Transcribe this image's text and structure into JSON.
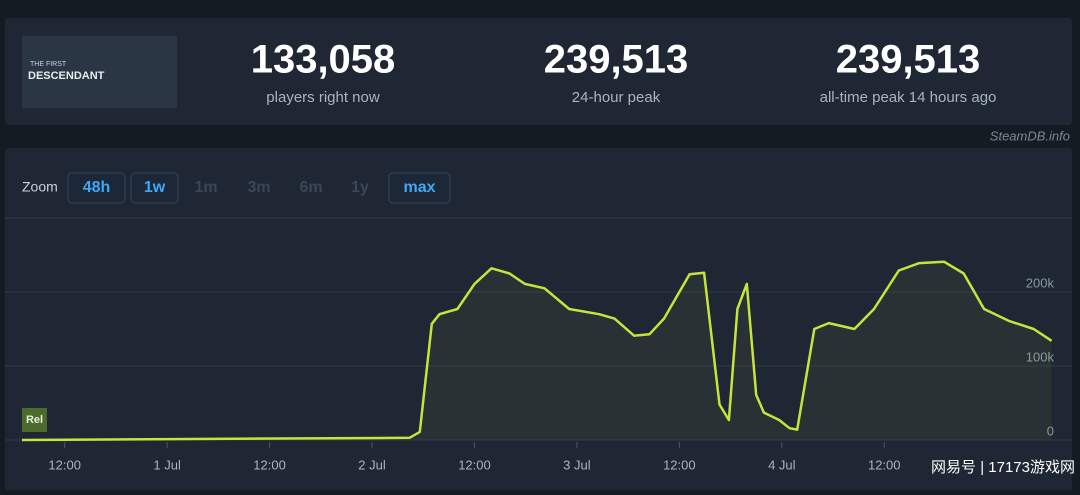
{
  "header": {
    "logo": {
      "line1": "THE FIRST",
      "line2": "DESCENDANT"
    },
    "stats": [
      {
        "value": "133,058",
        "label": "players right now"
      },
      {
        "value": "239,513",
        "label": "24-hour peak"
      },
      {
        "value": "239,513",
        "label": "all-time peak 14 hours ago"
      }
    ],
    "source": "SteamDB.info"
  },
  "zoom": {
    "label": "Zoom",
    "options": [
      "48h",
      "1w",
      "1m",
      "3m",
      "6m",
      "1y",
      "max"
    ],
    "active": [
      true,
      true,
      false,
      false,
      false,
      false,
      true
    ]
  },
  "watermark": "网易号 | 17173游戏网",
  "chart_data": {
    "type": "line",
    "annotation": "Rel",
    "x": [
      -17,
      28.4,
      29.6,
      31,
      31.9,
      34,
      36,
      38,
      40.1,
      41.9,
      44.2,
      47.1,
      50.6,
      52.4,
      54.7,
      56.5,
      58.2,
      61.2,
      62.9,
      64.7,
      65.8,
      66.8,
      67.9,
      69,
      69.9,
      71.7,
      72.9,
      73.8,
      75.8,
      77.5,
      80.5,
      82.8,
      85.7,
      88.1,
      91,
      93.3,
      95.7,
      98.6,
      101.5,
      103.6
    ],
    "series": [
      {
        "name": "Players",
        "color": "#c6e33e",
        "values": [
          0,
          3000,
          11000,
          157000,
          170000,
          177000,
          211000,
          232000,
          225000,
          211000,
          205000,
          177000,
          170000,
          164000,
          141000,
          143000,
          164000,
          224000,
          226000,
          48000,
          27000,
          177000,
          211000,
          61000,
          37000,
          27000,
          16000,
          14000,
          150000,
          158000,
          150000,
          177000,
          229000,
          239000,
          241000,
          225000,
          177000,
          161000,
          150000,
          134000
        ]
      }
    ],
    "xlim": [
      -17,
      104
    ],
    "xticks": [
      {
        "value": -12,
        "label": "12:00"
      },
      {
        "value": 0,
        "label": "1 Jul"
      },
      {
        "value": 12,
        "label": "12:00"
      },
      {
        "value": 24,
        "label": "2 Jul"
      },
      {
        "value": 36,
        "label": "12:00"
      },
      {
        "value": 48,
        "label": "3 Jul"
      },
      {
        "value": 60,
        "label": "12:00"
      },
      {
        "value": 72,
        "label": "4 Jul"
      },
      {
        "value": 84,
        "label": "12:00"
      }
    ],
    "ylim": [
      0,
      300000
    ],
    "yticks": [
      0,
      {
        "value": 100000,
        "label": "100k"
      },
      {
        "value": 200000,
        "label": "200k"
      },
      {
        "value": 300000,
        "label": ""
      }
    ],
    "grid": true
  }
}
